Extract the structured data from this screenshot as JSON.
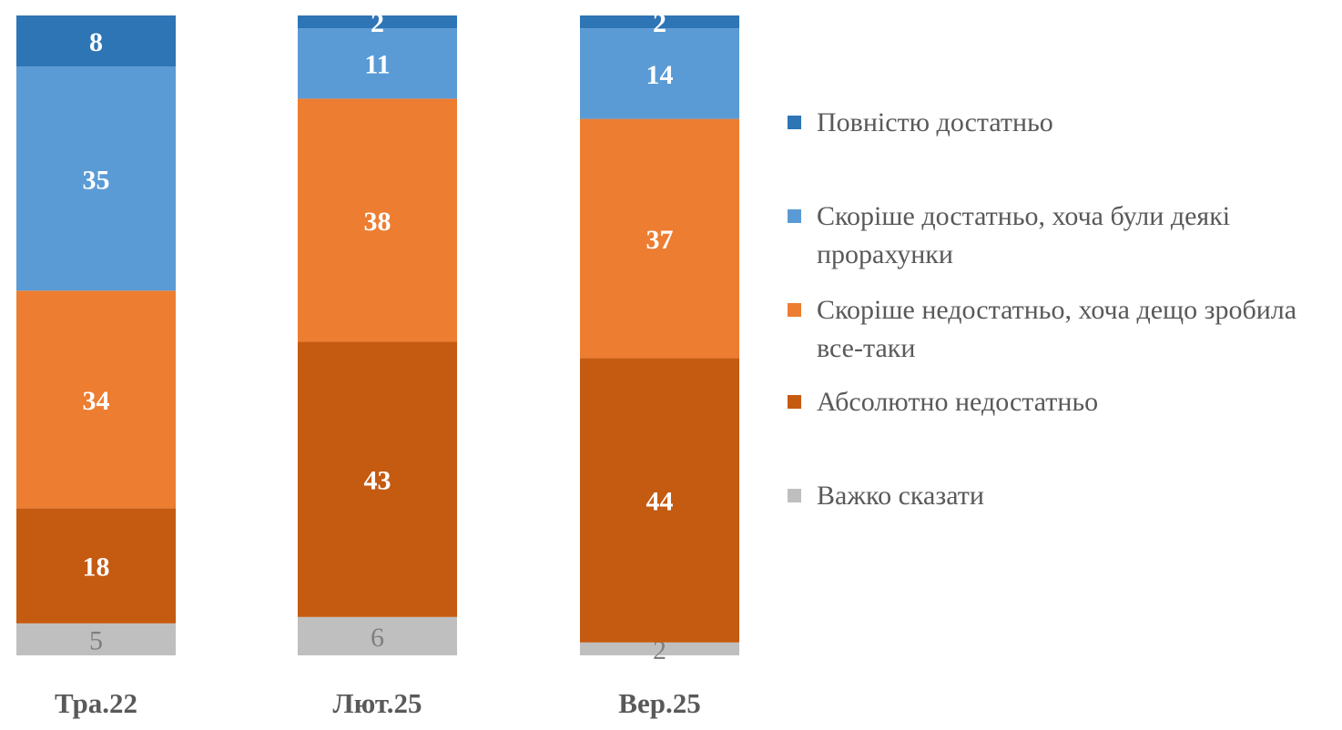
{
  "chart_data": {
    "type": "bar",
    "stacked": true,
    "categories": [
      "Тра.22",
      "Лют.25",
      "Вер.25"
    ],
    "series": [
      {
        "name": "Повністю достатньо",
        "color": "#2E75B6",
        "label_color": "#FFFFFF",
        "values": [
          8,
          2,
          2
        ]
      },
      {
        "name": "Скоріше достатньо, хоча були деякі прорахунки",
        "color": "#5B9BD5",
        "label_color": "#FFFFFF",
        "values": [
          35,
          11,
          14
        ]
      },
      {
        "name": "Скоріше недостатньо, хоча дещо зробила все-таки",
        "color": "#ED7D31",
        "label_color": "#FFFFFF",
        "values": [
          34,
          38,
          37
        ]
      },
      {
        "name": "Абсолютно недостатньо",
        "color": "#C55A11",
        "label_color": "#FFFFFF",
        "values": [
          18,
          43,
          44
        ]
      },
      {
        "name": "Важко сказати",
        "color": "#BFBFBF",
        "label_color": "#7F7F7F",
        "values": [
          5,
          6,
          2
        ]
      }
    ],
    "stack_order": "bottom-to-top: Важко сказати, Абсолютно недостатньо, Скоріше недостатньо, Скоріше достатньо, Повністю достатньо",
    "ylim": [
      0,
      100
    ],
    "grid": false,
    "legend_position": "right",
    "data_labels": true
  }
}
